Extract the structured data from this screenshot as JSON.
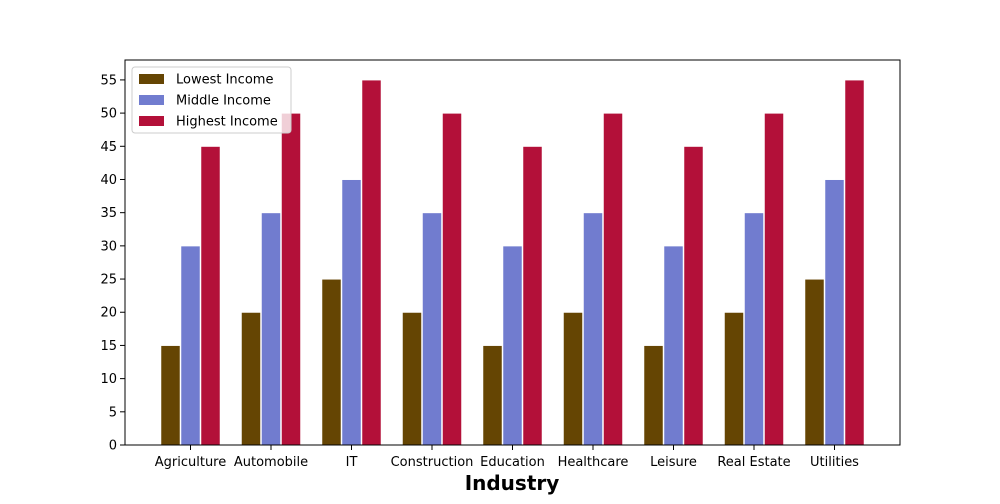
{
  "chart_data": {
    "type": "bar",
    "title": "",
    "xlabel": "Industry",
    "ylabel": "",
    "ylim": [
      0,
      58
    ],
    "yticks": [
      0,
      5,
      10,
      15,
      20,
      25,
      30,
      35,
      40,
      45,
      50,
      55
    ],
    "grid": false,
    "legend_position": "top-left",
    "categories": [
      "Agriculture",
      "Automobile",
      "IT",
      "Construction",
      "Education",
      "Healthcare",
      "Leisure",
      "Real Estate",
      "Utilities"
    ],
    "series": [
      {
        "name": "Lowest Income",
        "color": "#654503",
        "values": [
          15,
          20,
          25,
          20,
          15,
          20,
          15,
          20,
          25
        ]
      },
      {
        "name": "Middle Income",
        "color": "#717ccf",
        "values": [
          30,
          35,
          40,
          35,
          30,
          35,
          30,
          35,
          40
        ]
      },
      {
        "name": "Highest Income",
        "color": "#b31039",
        "values": [
          45,
          50,
          55,
          50,
          45,
          50,
          45,
          50,
          55
        ]
      }
    ]
  }
}
